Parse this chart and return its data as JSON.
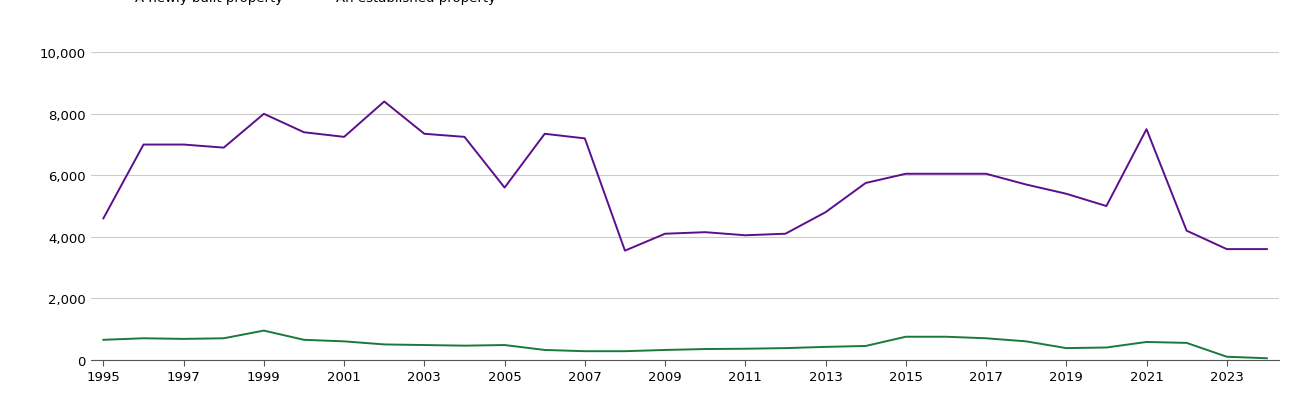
{
  "years": [
    1995,
    1996,
    1997,
    1998,
    1999,
    2000,
    2001,
    2002,
    2003,
    2004,
    2005,
    2006,
    2007,
    2008,
    2009,
    2010,
    2011,
    2012,
    2013,
    2014,
    2015,
    2016,
    2017,
    2018,
    2019,
    2020,
    2021,
    2022,
    2023,
    2024
  ],
  "newly_built": [
    650,
    700,
    680,
    700,
    950,
    650,
    600,
    500,
    480,
    460,
    480,
    320,
    280,
    280,
    320,
    350,
    360,
    380,
    420,
    450,
    750,
    750,
    700,
    600,
    380,
    400,
    580,
    550,
    100,
    50
  ],
  "established": [
    4600,
    7000,
    7000,
    6900,
    8000,
    7400,
    7250,
    8400,
    7350,
    7250,
    5600,
    7350,
    7200,
    3550,
    4100,
    4150,
    4050,
    4100,
    4800,
    5750,
    6050,
    6050,
    6050,
    5700,
    5400,
    5000,
    7500,
    4200,
    3600,
    3600
  ],
  "newly_built_color": "#1a7a3a",
  "established_color": "#5b0f8c",
  "ylim": [
    0,
    10000
  ],
  "yticks": [
    0,
    2000,
    4000,
    6000,
    8000,
    10000
  ],
  "xtick_years": [
    1995,
    1997,
    1999,
    2001,
    2003,
    2005,
    2007,
    2009,
    2011,
    2013,
    2015,
    2017,
    2019,
    2021,
    2023
  ],
  "background_color": "#ffffff",
  "grid_color": "#cccccc",
  "line_width": 1.4,
  "tick_fontsize": 9.5,
  "legend_fontsize": 9.5
}
